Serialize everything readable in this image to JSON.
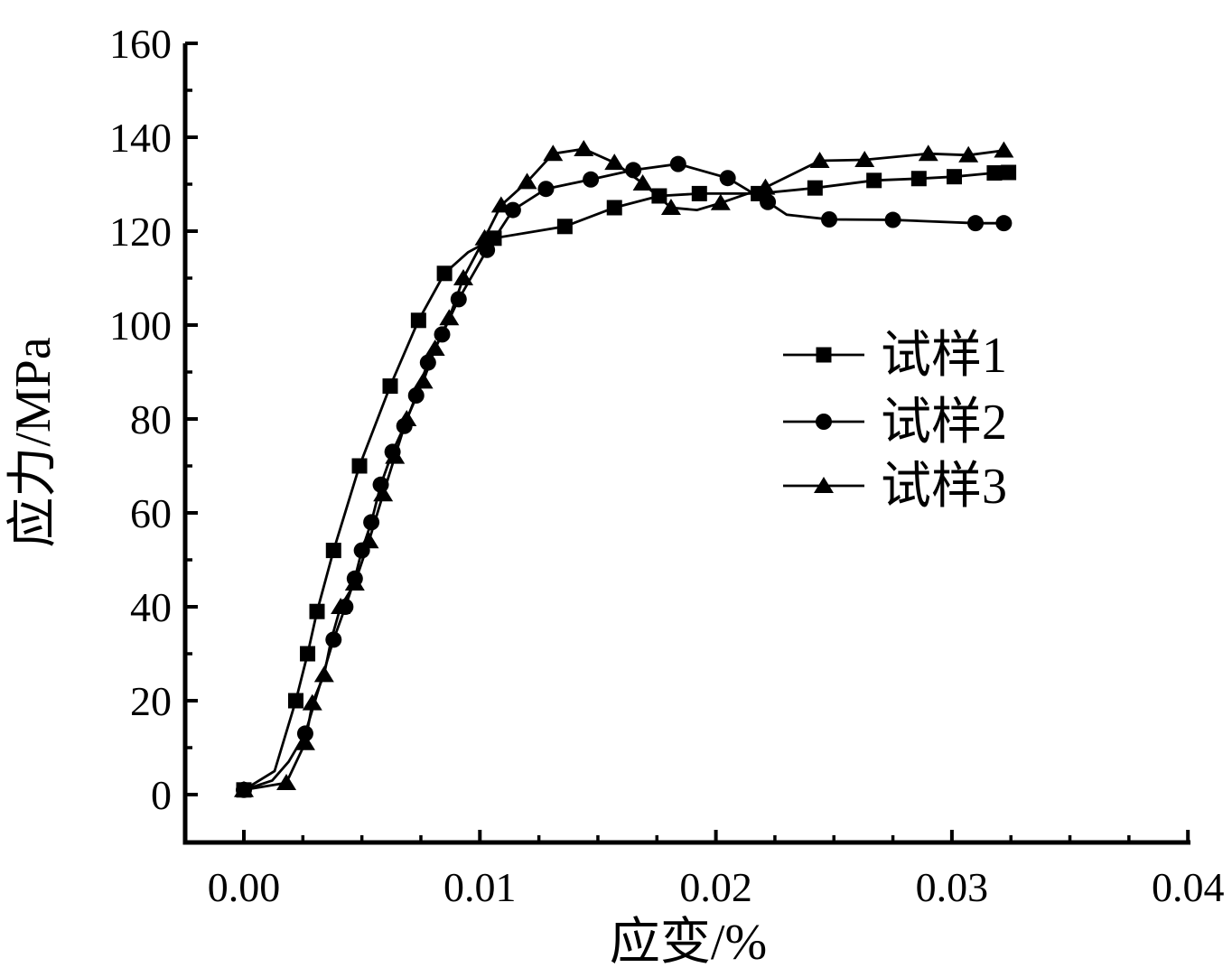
{
  "chart_data": {
    "type": "line",
    "title": "",
    "xlabel": "应变/%",
    "ylabel": "应力/MPa",
    "grid": false,
    "background_color": "#ffffff",
    "axis_color": "#000000",
    "legend_position": "middle-right",
    "x_axis": {
      "min": -0.0026,
      "max": 0.04,
      "major_ticks": [
        0.0,
        0.01,
        0.02,
        0.03,
        0.04
      ],
      "major_tick_labels": [
        "0.00",
        "0.01",
        "0.02",
        "0.03",
        "0.04"
      ],
      "minor_tick_step": 0.0025
    },
    "y_axis": {
      "min": -10,
      "max": 160,
      "major_ticks": [
        0,
        20,
        40,
        60,
        80,
        100,
        120,
        140,
        160
      ],
      "major_tick_labels": [
        "0",
        "20",
        "40",
        "60",
        "80",
        "100",
        "120",
        "140",
        "160"
      ],
      "minor_tick_step": 10
    },
    "series": [
      {
        "name": "试样1",
        "marker": "square",
        "color": "#000000",
        "points": [
          [
            0.0,
            1
          ],
          [
            0.0022,
            20
          ],
          [
            0.0027,
            30
          ],
          [
            0.0031,
            39
          ],
          [
            0.0038,
            52
          ],
          [
            0.0049,
            70
          ],
          [
            0.0062,
            87
          ],
          [
            0.0074,
            101
          ],
          [
            0.0085,
            111
          ],
          [
            0.0106,
            118.5
          ],
          [
            0.0136,
            121
          ],
          [
            0.0157,
            125
          ],
          [
            0.0176,
            127.5
          ],
          [
            0.0193,
            128
          ],
          [
            0.0218,
            128
          ],
          [
            0.0242,
            129.2
          ],
          [
            0.0267,
            130.8
          ],
          [
            0.0286,
            131.2
          ],
          [
            0.0301,
            131.6
          ],
          [
            0.0318,
            132.4
          ],
          [
            0.0324,
            132.5
          ]
        ],
        "line_extra": [
          [
            0.0013,
            5
          ],
          [
            0.0095,
            115.5
          ]
        ]
      },
      {
        "name": "试样2",
        "marker": "circle",
        "color": "#000000",
        "points": [
          [
            0.0,
            1
          ],
          [
            0.0026,
            13
          ],
          [
            0.0038,
            33
          ],
          [
            0.0043,
            40
          ],
          [
            0.0047,
            46
          ],
          [
            0.005,
            52
          ],
          [
            0.0054,
            58
          ],
          [
            0.0058,
            66
          ],
          [
            0.0063,
            73
          ],
          [
            0.0068,
            78.5
          ],
          [
            0.0073,
            85
          ],
          [
            0.0078,
            92
          ],
          [
            0.0084,
            98
          ],
          [
            0.0091,
            105.5
          ],
          [
            0.0103,
            116
          ],
          [
            0.0114,
            124.5
          ],
          [
            0.0128,
            129
          ],
          [
            0.0147,
            131
          ],
          [
            0.0165,
            133
          ],
          [
            0.0184,
            134.3
          ],
          [
            0.0205,
            131.3
          ],
          [
            0.0222,
            126.2
          ],
          [
            0.0248,
            122.5
          ],
          [
            0.0275,
            122.4
          ],
          [
            0.031,
            121.7
          ],
          [
            0.0322,
            121.7
          ]
        ],
        "line_extra": [
          [
            0.0012,
            3
          ],
          [
            0.0019,
            7
          ],
          [
            0.023,
            123.5
          ]
        ]
      },
      {
        "name": "试样3",
        "marker": "triangle",
        "color": "#000000",
        "points": [
          [
            0.0,
            1
          ],
          [
            0.0018,
            2.5
          ],
          [
            0.0026,
            11
          ],
          [
            0.0029,
            19.5
          ],
          [
            0.0034,
            25.5
          ],
          [
            0.0041,
            40
          ],
          [
            0.0047,
            45
          ],
          [
            0.0053,
            54
          ],
          [
            0.0059,
            64
          ],
          [
            0.0064,
            72
          ],
          [
            0.0069,
            80
          ],
          [
            0.0076,
            88
          ],
          [
            0.0081,
            95
          ],
          [
            0.0087,
            101.5
          ],
          [
            0.0093,
            110
          ],
          [
            0.0102,
            118.5
          ],
          [
            0.0109,
            125.5
          ],
          [
            0.012,
            130.5
          ],
          [
            0.0131,
            136.5
          ],
          [
            0.0144,
            137.5
          ],
          [
            0.0157,
            134.6
          ],
          [
            0.0169,
            130.2
          ],
          [
            0.0181,
            125
          ],
          [
            0.0202,
            126
          ],
          [
            0.0221,
            129.3
          ],
          [
            0.0244,
            135
          ],
          [
            0.0263,
            135.2
          ],
          [
            0.029,
            136.5
          ],
          [
            0.0307,
            136.2
          ],
          [
            0.0322,
            137.2
          ]
        ],
        "line_extra": [
          [
            0.0037,
            33
          ],
          [
            0.0192,
            124.5
          ]
        ]
      }
    ]
  }
}
